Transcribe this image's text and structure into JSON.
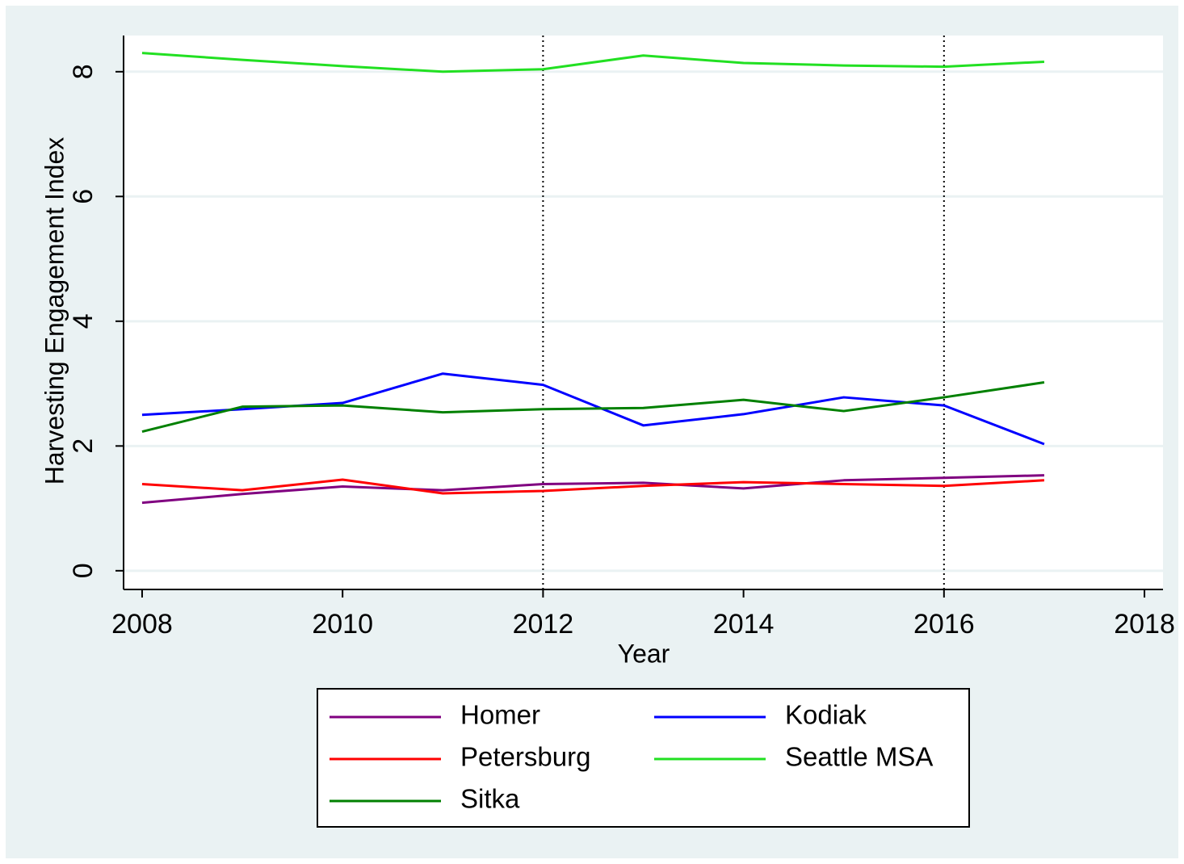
{
  "chart_data": {
    "type": "line",
    "xlabel": "Year",
    "ylabel": "Harvesting Engagement Index",
    "x": [
      2008,
      2009,
      2010,
      2011,
      2012,
      2013,
      2014,
      2015,
      2016,
      2017
    ],
    "series": [
      {
        "name": "Homer",
        "color": "#800080",
        "values": [
          1.09,
          1.23,
          1.35,
          1.29,
          1.39,
          1.41,
          1.32,
          1.45,
          1.49,
          1.53
        ]
      },
      {
        "name": "Kodiak",
        "color": "#0000ff",
        "values": [
          2.5,
          2.59,
          2.69,
          3.16,
          2.98,
          2.33,
          2.51,
          2.78,
          2.65,
          2.03
        ]
      },
      {
        "name": "Petersburg",
        "color": "#ff0000",
        "values": [
          1.39,
          1.29,
          1.46,
          1.24,
          1.28,
          1.36,
          1.42,
          1.39,
          1.36,
          1.45
        ]
      },
      {
        "name": "Seattle MSA",
        "color": "#22e022",
        "values": [
          8.3,
          8.19,
          8.09,
          8.0,
          8.04,
          8.26,
          8.14,
          8.1,
          8.08,
          8.16
        ]
      },
      {
        "name": "Sitka",
        "color": "#008000",
        "values": [
          2.23,
          2.63,
          2.65,
          2.54,
          2.59,
          2.61,
          2.74,
          2.56,
          2.78,
          3.02
        ]
      }
    ],
    "xlim": [
      2007.815,
      2018.185
    ],
    "xticks": [
      2008,
      2010,
      2012,
      2014,
      2016,
      2018
    ],
    "ylim": [
      -0.3,
      8.58
    ],
    "yticks": [
      0,
      2,
      4,
      6,
      8
    ],
    "xlines": [
      2012,
      2016
    ],
    "grid": true,
    "legend": "bottom"
  }
}
